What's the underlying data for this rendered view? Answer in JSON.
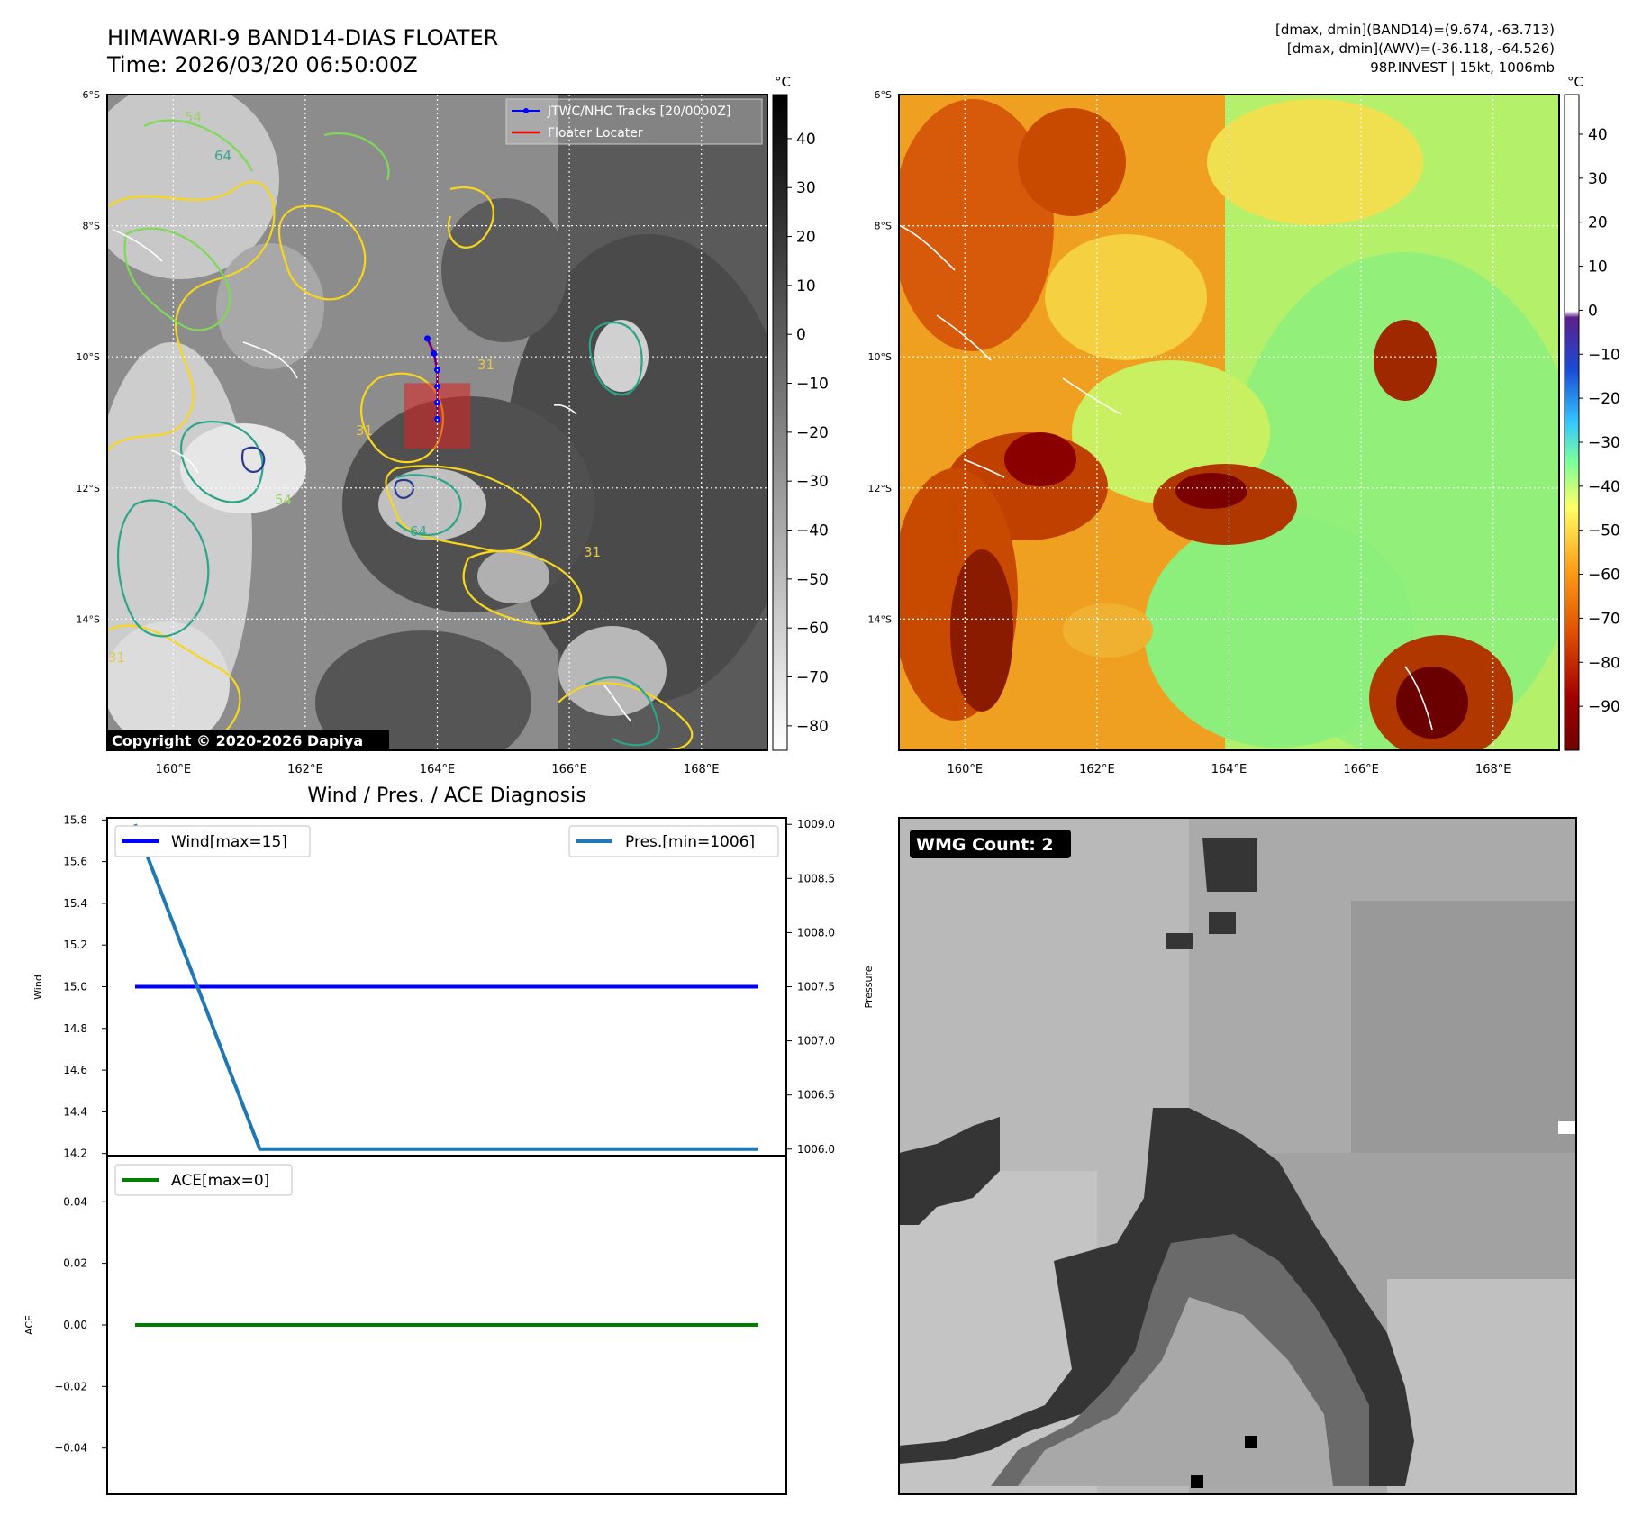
{
  "header": {
    "title": "HIMAWARI-9 BAND14-DIAS FLOATER",
    "time": "Time: 2026/03/20 06:50:00Z",
    "stats_line1": "[dmax, dmin](BAND14)=(9.674, -63.713)",
    "stats_line2": "[dmax, dmin](AWV)=(-36.118, -64.526)",
    "stats_line3": "98P.INVEST | 15kt, 1006mb"
  },
  "map_panels": {
    "lat_labels": [
      "6°S",
      "8°S",
      "10°S",
      "12°S",
      "14°S"
    ],
    "lon_labels": [
      "160°E",
      "162°E",
      "164°E",
      "166°E",
      "168°E"
    ],
    "lat_values": [
      -6,
      -8,
      -10,
      -12,
      -14
    ],
    "lon_values": [
      160,
      162,
      164,
      166,
      168
    ],
    "lon_range": [
      159,
      169
    ],
    "lat_range": [
      -16,
      -6
    ]
  },
  "ir_panel": {
    "legend": [
      {
        "label": "JTWC/NHC Tracks [20/0000Z]",
        "color": "#0000ff"
      },
      {
        "label": "Floater Locater",
        "color": "#ff0000"
      }
    ],
    "contour_labels": [
      "54",
      "64",
      "31",
      "31",
      "54",
      "64",
      "31",
      "31"
    ],
    "copyright": "Copyright © 2020-2026 Dapiya",
    "colorbar_unit": "°C",
    "colorbar_ticks": [
      "40",
      "30",
      "20",
      "10",
      "0",
      "−10",
      "−20",
      "−30",
      "−40",
      "−50",
      "−60",
      "−70",
      "−80"
    ],
    "colorbar_tick_values": [
      40,
      30,
      20,
      10,
      0,
      -10,
      -20,
      -30,
      -40,
      -50,
      -60,
      -70,
      -80
    ],
    "colorbar_range": [
      -85,
      49
    ],
    "track": {
      "lon": [
        163.85,
        163.95,
        164.0,
        164.0,
        164.0,
        164.0
      ],
      "lat": [
        -9.72,
        -9.95,
        -10.2,
        -10.45,
        -10.7,
        -10.95
      ]
    },
    "floater_box": {
      "lon": [
        163.5,
        164.5
      ],
      "lat": [
        -11.4,
        -10.4
      ]
    }
  },
  "awv_panel": {
    "colorbar_unit": "°C",
    "colorbar_ticks": [
      "40",
      "30",
      "20",
      "10",
      "0",
      "−10",
      "−20",
      "−30",
      "−40",
      "−50",
      "−60",
      "−70",
      "−80",
      "−90"
    ],
    "colorbar_tick_values": [
      40,
      30,
      20,
      10,
      0,
      -10,
      -20,
      -30,
      -40,
      -50,
      -60,
      -70,
      -80,
      -90
    ],
    "colorbar_range": [
      -100,
      49
    ]
  },
  "diagnosis": {
    "title": "Wind / Pres. / ACE Diagnosis",
    "wind_ylabel": "Wind",
    "pres_ylabel": "Pressure",
    "ace_ylabel": "ACE",
    "legend_wind": "Wind[max=15]",
    "legend_pres": "Pres.[min=1006]",
    "legend_ace": "ACE[max=0]",
    "wind_ticks": [
      "15.8",
      "15.6",
      "15.4",
      "15.2",
      "15.0",
      "14.8",
      "14.6",
      "14.4",
      "14.2"
    ],
    "pres_ticks": [
      "1009.0",
      "1008.5",
      "1008.0",
      "1007.5",
      "1007.0",
      "1006.5",
      "1006.0"
    ],
    "ace_ticks": [
      "0.04",
      "0.02",
      "0.00",
      "−0.02",
      "−0.04"
    ]
  },
  "wmg": {
    "label": "WMG Count: 2"
  },
  "chart_data": [
    {
      "type": "line",
      "title": "Wind / Pres. / ACE Diagnosis",
      "x": [
        0,
        1,
        2,
        3,
        4,
        5
      ],
      "series": [
        {
          "name": "Wind[max=15]",
          "axis": "left",
          "values": [
            15,
            15,
            15,
            15,
            15,
            15
          ],
          "color": "#0000ff"
        },
        {
          "name": "Pres.[min=1006]",
          "axis": "right",
          "values": [
            1009.0,
            1006,
            1006,
            1006,
            1006,
            1006
          ],
          "color": "#1f77b4"
        }
      ],
      "ylabel": "Wind",
      "y2label": "Pressure",
      "ylim": [
        14.19,
        15.81
      ],
      "y2lim": [
        1005.94,
        1009.06
      ],
      "grid": false
    },
    {
      "type": "line",
      "x": [
        0,
        1,
        2,
        3,
        4,
        5
      ],
      "series": [
        {
          "name": "ACE[max=0]",
          "values": [
            0,
            0,
            0,
            0,
            0,
            0
          ],
          "color": "#008000"
        }
      ],
      "ylabel": "ACE",
      "ylim": [
        -0.055,
        0.055
      ],
      "grid": false
    }
  ]
}
